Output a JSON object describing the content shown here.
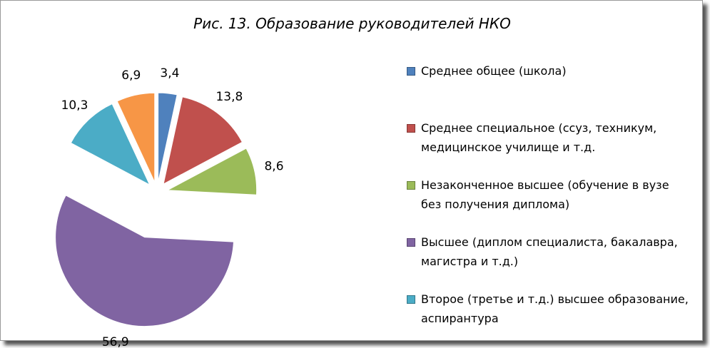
{
  "chart_data": {
    "type": "pie",
    "title": "Рис. 13. Образование руководителей НКО",
    "categories": [
      "Среднее общее (школа)",
      "Среднее специальное (ссуз, техникум, медицинское училище и т.д.",
      "Незаконченное высшее (обучение в вузе без получения диплома)",
      "Высшее (диплом специалиста, бакалавра, магистра и т.д.)",
      "Второе (третье и т.д.) высшее образование, аспирантура",
      null
    ],
    "values": [
      3.4,
      13.8,
      8.6,
      56.9,
      10.3,
      6.9
    ],
    "value_labels": [
      "3,4",
      "13,8",
      "8,6",
      "56,9",
      "10,3",
      "6,9"
    ],
    "colors": [
      "#4f81bd",
      "#c0504d",
      "#9bbb59",
      "#8064a2",
      "#4bacc6",
      "#f79646"
    ],
    "legend": "right"
  }
}
